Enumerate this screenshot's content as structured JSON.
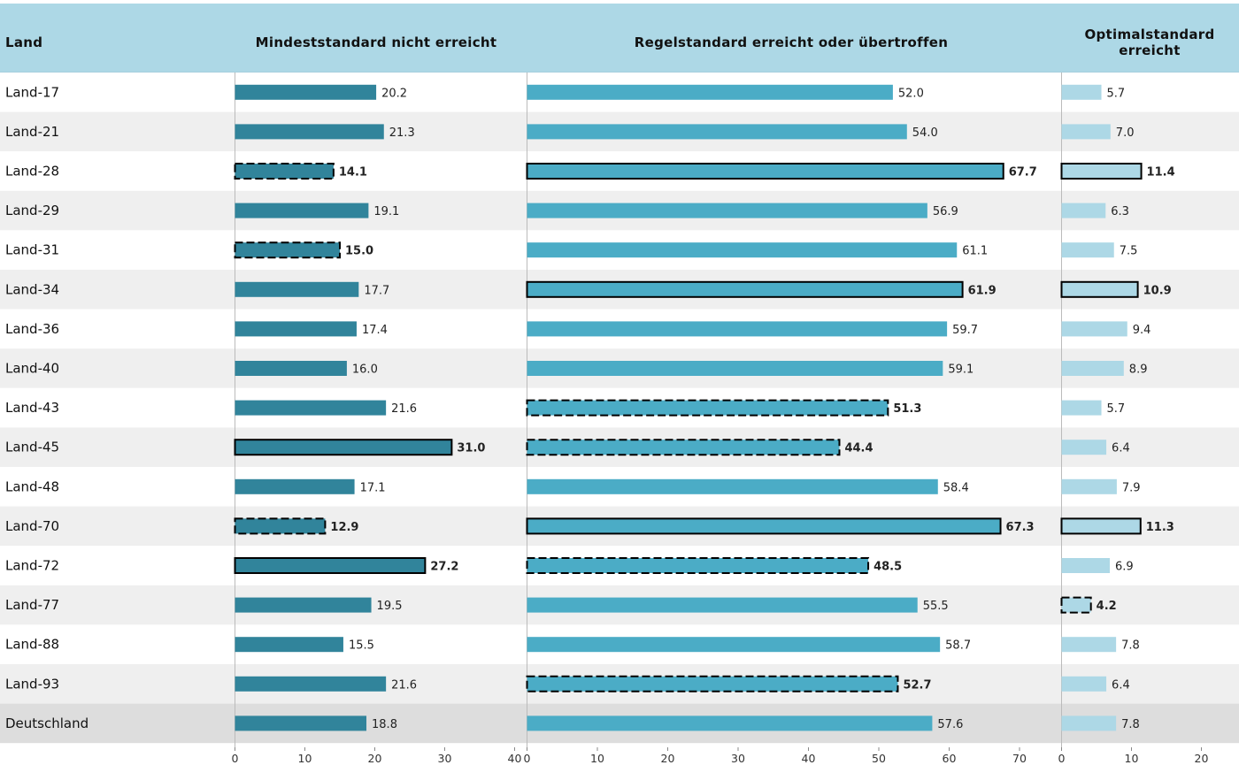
{
  "chart_data": {
    "type": "bar",
    "columns": [
      {
        "key": "mindest",
        "title": "Mindeststandard nicht erreicht",
        "xlim": [
          0,
          40
        ],
        "ticks": [
          0,
          10,
          20,
          30,
          40
        ],
        "color": "#31849b"
      },
      {
        "key": "regel",
        "title": "Regelstandard erreicht oder übertroffen",
        "xlim": [
          0,
          70
        ],
        "ticks": [
          0,
          10,
          20,
          30,
          40,
          50,
          60,
          70
        ],
        "color": "#4bacc6"
      },
      {
        "key": "optimal",
        "title_lines": [
          "Optimalstandard",
          "erreicht"
        ],
        "xlim": [
          0,
          20
        ],
        "ticks": [
          0,
          10,
          20
        ],
        "color": "#add8e6"
      }
    ],
    "label_header": "Land",
    "rows": [
      {
        "label": "Land-17",
        "mindest": 20.2,
        "regel": 52.0,
        "optimal": 5.7,
        "mindest_style": "none",
        "regel_style": "none",
        "optimal_style": "none"
      },
      {
        "label": "Land-21",
        "mindest": 21.3,
        "regel": 54.0,
        "optimal": 7.0,
        "mindest_style": "none",
        "regel_style": "none",
        "optimal_style": "none"
      },
      {
        "label": "Land-28",
        "mindest": 14.1,
        "regel": 67.7,
        "optimal": 11.4,
        "mindest_style": "dashed",
        "regel_style": "solid",
        "optimal_style": "solid"
      },
      {
        "label": "Land-29",
        "mindest": 19.1,
        "regel": 56.9,
        "optimal": 6.3,
        "mindest_style": "none",
        "regel_style": "none",
        "optimal_style": "none"
      },
      {
        "label": "Land-31",
        "mindest": 15.0,
        "regel": 61.1,
        "optimal": 7.5,
        "mindest_style": "dashed",
        "regel_style": "none",
        "optimal_style": "none"
      },
      {
        "label": "Land-34",
        "mindest": 17.7,
        "regel": 61.9,
        "optimal": 10.9,
        "mindest_style": "none",
        "regel_style": "solid",
        "optimal_style": "solid"
      },
      {
        "label": "Land-36",
        "mindest": 17.4,
        "regel": 59.7,
        "optimal": 9.4,
        "mindest_style": "none",
        "regel_style": "none",
        "optimal_style": "none"
      },
      {
        "label": "Land-40",
        "mindest": 16.0,
        "regel": 59.1,
        "optimal": 8.9,
        "mindest_style": "none",
        "regel_style": "none",
        "optimal_style": "none"
      },
      {
        "label": "Land-43",
        "mindest": 21.6,
        "regel": 51.3,
        "optimal": 5.7,
        "mindest_style": "none",
        "regel_style": "dashed",
        "optimal_style": "none"
      },
      {
        "label": "Land-45",
        "mindest": 31.0,
        "regel": 44.4,
        "optimal": 6.4,
        "mindest_style": "solid",
        "regel_style": "dashed",
        "optimal_style": "none"
      },
      {
        "label": "Land-48",
        "mindest": 17.1,
        "regel": 58.4,
        "optimal": 7.9,
        "mindest_style": "none",
        "regel_style": "none",
        "optimal_style": "none"
      },
      {
        "label": "Land-70",
        "mindest": 12.9,
        "regel": 67.3,
        "optimal": 11.3,
        "mindest_style": "dashed",
        "regel_style": "solid",
        "optimal_style": "solid"
      },
      {
        "label": "Land-72",
        "mindest": 27.2,
        "regel": 48.5,
        "optimal": 6.9,
        "mindest_style": "solid",
        "regel_style": "dashed",
        "optimal_style": "none"
      },
      {
        "label": "Land-77",
        "mindest": 19.5,
        "regel": 55.5,
        "optimal": 4.2,
        "mindest_style": "none",
        "regel_style": "none",
        "optimal_style": "dashed"
      },
      {
        "label": "Land-88",
        "mindest": 15.5,
        "regel": 58.7,
        "optimal": 7.8,
        "mindest_style": "none",
        "regel_style": "none",
        "optimal_style": "none"
      },
      {
        "label": "Land-93",
        "mindest": 21.6,
        "regel": 52.7,
        "optimal": 6.4,
        "mindest_style": "none",
        "regel_style": "dashed",
        "optimal_style": "none"
      },
      {
        "label": "Deutschland",
        "mindest": 18.8,
        "regel": 57.6,
        "optimal": 7.8,
        "mindest_style": "none",
        "regel_style": "none",
        "optimal_style": "none",
        "is_total": true
      }
    ],
    "colors": {
      "header_bg": "#add8e6",
      "row_alt_bg": "#efefef",
      "total_bg": "#dddddd",
      "axis_line": "#bbbbbb"
    }
  }
}
